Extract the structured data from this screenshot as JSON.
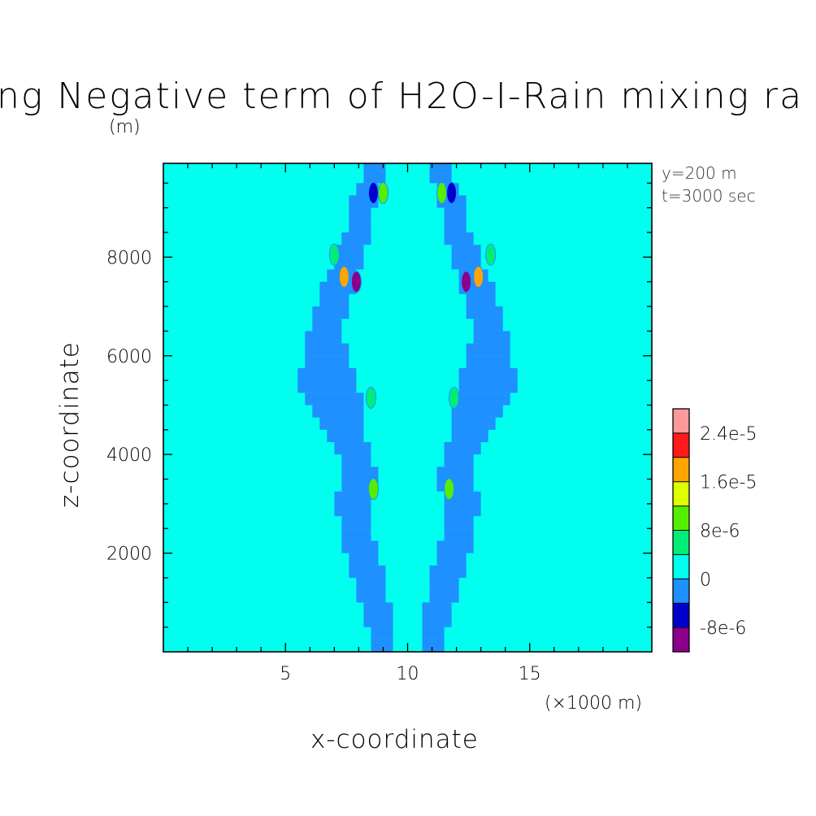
{
  "chart_data": {
    "type": "heatmap",
    "title": "ng Negative term of H2O-I-Rain mixing ra",
    "z_units_label": "(m)",
    "x_units_label": "(×1000 m)",
    "xlabel": "x-coordinate",
    "ylabel": "z-coordinate",
    "annotations": [
      "y=200 m",
      "t=3000 sec"
    ],
    "xlim": [
      0,
      20
    ],
    "ylim": [
      0,
      9900
    ],
    "xticks": [
      5,
      10,
      15
    ],
    "yticks": [
      2000,
      4000,
      6000,
      8000
    ],
    "xticks_labels": [
      "5",
      "10",
      "15"
    ],
    "yticks_labels": [
      "2000",
      "4000",
      "6000",
      "8000"
    ],
    "colorbar": {
      "levels": [
        -1.2e-05,
        -8e-06,
        -4e-06,
        0,
        4e-06,
        8e-06,
        1.2e-05,
        1.6e-05,
        2e-05,
        2.4e-05,
        2.8e-05
      ],
      "colors": [
        "#8b008b",
        "#0000cd",
        "#1e90ff",
        "#00ffee",
        "#00ee77",
        "#55ee00",
        "#ddff00",
        "#ffa500",
        "#ff1a1a",
        "#ff9999"
      ],
      "labels": [
        "-8e-6",
        "0",
        "8e-6",
        "1.6e-5",
        "2.4e-5"
      ],
      "label_levels": [
        -8e-06,
        0,
        8e-06,
        1.6e-05,
        2.4e-05
      ]
    },
    "features": [
      {
        "x": 9,
        "z": 9300,
        "value": 9e-06
      },
      {
        "x": 8.6,
        "z": 9300,
        "value": -6e-06
      },
      {
        "x": 11.4,
        "z": 9300,
        "value": 9e-06
      },
      {
        "x": 11.8,
        "z": 9300,
        "value": -6e-06
      },
      {
        "x": 7.4,
        "z": 7600,
        "value": 1.7e-05
      },
      {
        "x": 7.9,
        "z": 7500,
        "value": -1e-05
      },
      {
        "x": 12.9,
        "z": 7600,
        "value": 1.7e-05
      },
      {
        "x": 12.4,
        "z": 7500,
        "value": -1e-05
      },
      {
        "x": 7.0,
        "z": 8050,
        "value": 7e-06
      },
      {
        "x": 13.4,
        "z": 8050,
        "value": 7e-06
      },
      {
        "x": 8.5,
        "z": 5150,
        "value": 6e-06
      },
      {
        "x": 11.9,
        "z": 5150,
        "value": 6e-06
      },
      {
        "x": 8.6,
        "z": 3300,
        "value": 9e-06
      },
      {
        "x": 11.7,
        "z": 3300,
        "value": 9e-06
      }
    ]
  }
}
